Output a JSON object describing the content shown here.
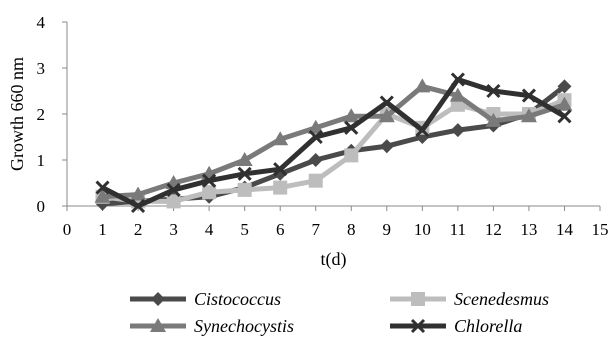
{
  "chart_data": {
    "type": "line",
    "title": "",
    "xlabel": "t(d)",
    "ylabel": "Growth 660 nm",
    "xlim": [
      0,
      15
    ],
    "ylim": [
      0,
      4
    ],
    "x_ticks": [
      "0",
      "1",
      "2",
      "3",
      "4",
      "5",
      "6",
      "7",
      "8",
      "9",
      "10",
      "11",
      "12",
      "13",
      "14",
      "15"
    ],
    "y_ticks": [
      "0",
      "1",
      "2",
      "3",
      "4"
    ],
    "x": [
      1,
      2,
      3,
      4,
      5,
      6,
      7,
      8,
      9,
      10,
      11,
      12,
      13,
      14
    ],
    "grid": false,
    "legend_position": "bottom",
    "series": [
      {
        "name": "Cistococcus",
        "marker": "diamond",
        "color": "#4a4a4a",
        "values": [
          0.05,
          0.1,
          0.15,
          0.2,
          0.4,
          0.7,
          1.0,
          1.2,
          1.3,
          1.5,
          1.65,
          1.75,
          2.0,
          2.6
        ]
      },
      {
        "name": "Scenedesmus",
        "marker": "square",
        "color": "#bdbdbd",
        "values": [
          0.2,
          0.1,
          0.1,
          0.3,
          0.35,
          0.4,
          0.55,
          1.1,
          2.0,
          1.7,
          2.2,
          2.0,
          2.0,
          2.3
        ]
      },
      {
        "name": "Synechocystis",
        "marker": "triangle",
        "color": "#7a7a7a",
        "values": [
          0.2,
          0.25,
          0.5,
          0.7,
          1.0,
          1.45,
          1.7,
          1.95,
          1.95,
          2.6,
          2.4,
          1.85,
          1.95,
          2.2
        ]
      },
      {
        "name": "Chlorella",
        "marker": "x",
        "color": "#303030",
        "values": [
          0.4,
          0.0,
          0.35,
          0.55,
          0.7,
          0.8,
          1.5,
          1.7,
          2.25,
          1.65,
          2.75,
          2.5,
          2.4,
          1.95
        ]
      }
    ]
  }
}
